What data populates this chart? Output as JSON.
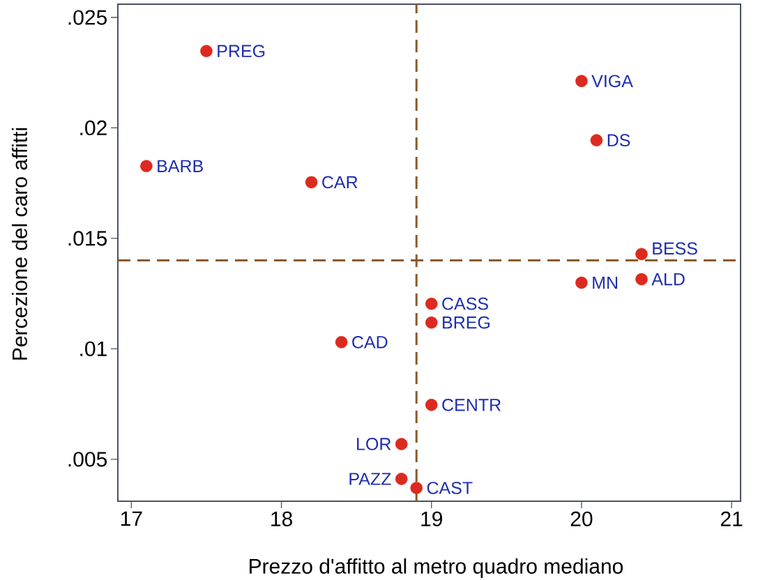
{
  "chart_data": {
    "type": "scatter",
    "xlabel": "Prezzo d'affitto al metro quadro mediano",
    "ylabel": "Percezione del caro affitti",
    "x": [
      17.5,
      17.1,
      18.2,
      20.0,
      20.1,
      20.4,
      20.4,
      20.0,
      19.0,
      19.0,
      18.4,
      19.0,
      18.8,
      18.8,
      18.9
    ],
    "values": [
      0.02348,
      0.01827,
      0.01754,
      0.02212,
      0.01944,
      0.01429,
      0.01315,
      0.01299,
      0.01204,
      0.01119,
      0.0103,
      0.00746,
      0.00569,
      0.00411,
      0.0037
    ],
    "color": "#dc2a1f",
    "marker": "circle",
    "xlim": [
      16.91,
      21.06
    ],
    "xticks": [
      17,
      18,
      19,
      20,
      21
    ],
    "ylim": [
      0.0031,
      0.0256
    ],
    "yticks": [
      {
        "value": 0.005,
        "label": ".005"
      },
      {
        "value": 0.01,
        "label": ".01"
      },
      {
        "value": 0.015,
        "label": ".015"
      },
      {
        "value": 0.02,
        "label": ".02"
      },
      {
        "value": 0.025,
        "label": ".025"
      }
    ],
    "ref_lines": [
      {
        "axis": "x",
        "value": 18.9,
        "color": "#8b5a2b",
        "line_style": "dashed"
      },
      {
        "axis": "y",
        "value": 0.014,
        "color": "#8b5a2b",
        "line_style": "dashed"
      }
    ],
    "annotations": [
      {
        "text": "PREG",
        "x": 17.5,
        "y": 0.02348
      },
      {
        "text": "BARB",
        "x": 17.1,
        "y": 0.01827
      },
      {
        "text": "CAR",
        "x": 18.2,
        "y": 0.01754
      },
      {
        "text": "VIGA",
        "x": 20.0,
        "y": 0.02212
      },
      {
        "text": "DS",
        "x": 20.1,
        "y": 0.01944
      },
      {
        "text": "BESS",
        "x": 20.4,
        "y": 0.01429
      },
      {
        "text": "ALD",
        "x": 20.4,
        "y": 0.01315
      },
      {
        "text": "MN",
        "x": 20.0,
        "y": 0.01299
      },
      {
        "text": "CASS",
        "x": 19.0,
        "y": 0.01204
      },
      {
        "text": "BREG",
        "x": 19.0,
        "y": 0.01119
      },
      {
        "text": "CAD",
        "x": 18.4,
        "y": 0.0103
      },
      {
        "text": "CENTR",
        "x": 19.0,
        "y": 0.00746
      },
      {
        "text": "LOR",
        "x": 18.8,
        "y": 0.00569
      },
      {
        "text": "CAST",
        "x": 18.9,
        "y": 0.0037
      },
      {
        "text": "PAZZ",
        "x": 18.8,
        "y": 0.00411
      }
    ]
  }
}
